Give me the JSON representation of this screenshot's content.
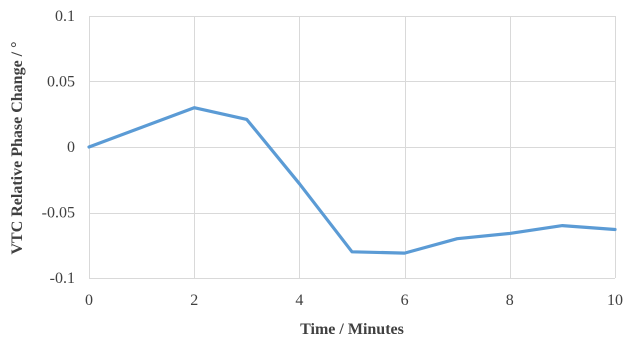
{
  "chart_data": {
    "type": "line",
    "title": "",
    "xlabel": "Time / Minutes",
    "ylabel": "VTC Relative Phase Change / °",
    "xlim": [
      0,
      10
    ],
    "ylim": [
      -0.1,
      0.1
    ],
    "x_ticks": [
      0,
      2,
      4,
      6,
      8,
      10
    ],
    "x_tick_labels": [
      "0",
      "2",
      "4",
      "6",
      "8",
      "10"
    ],
    "y_ticks": [
      0.1,
      0.05,
      0,
      -0.05,
      -0.1
    ],
    "y_tick_labels": [
      "0.1",
      "0.05",
      "0",
      "-0.05",
      "-0.1"
    ],
    "grid": true,
    "legend": "none",
    "series": [
      {
        "color": "#5b9bd5",
        "x": [
          0,
          1,
          2,
          3,
          4,
          5,
          6,
          7,
          8,
          9,
          10
        ],
        "y": [
          0,
          0.015,
          0.03,
          0.021,
          -0.028,
          -0.08,
          -0.081,
          -0.07,
          -0.066,
          -0.06,
          -0.063
        ]
      }
    ]
  }
}
